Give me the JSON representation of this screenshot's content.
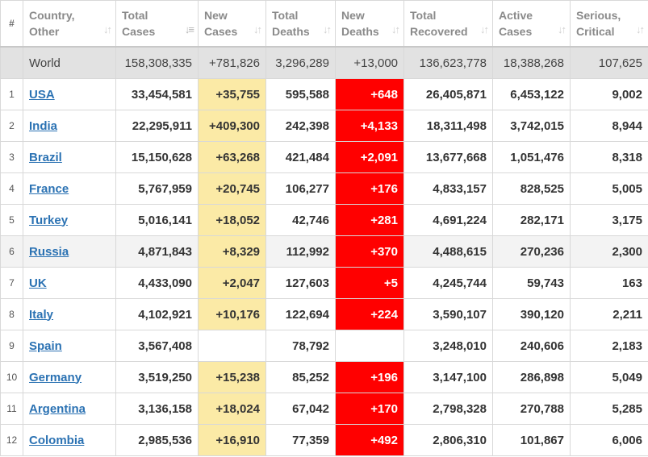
{
  "headers": {
    "rank": "#",
    "country": [
      "Country,",
      "Other"
    ],
    "total_cases": [
      "Total",
      "Cases"
    ],
    "new_cases": [
      "New",
      "Cases"
    ],
    "total_deaths": [
      "Total",
      "Deaths"
    ],
    "new_deaths": [
      "New",
      "Deaths"
    ],
    "total_recovered": [
      "Total",
      "Recovered"
    ],
    "active_cases": [
      "Active",
      "Cases"
    ],
    "serious_critical": [
      "Serious,",
      "Critical"
    ]
  },
  "sort_icon": "sort-arrows-icon",
  "world": {
    "country": "World",
    "total_cases": "158,308,335",
    "new_cases": "+781,826",
    "total_deaths": "3,296,289",
    "new_deaths": "+13,000",
    "total_recovered": "136,623,778",
    "active_cases": "18,388,268",
    "serious_critical": "107,625"
  },
  "rows": [
    {
      "rank": "1",
      "country": "USA",
      "total_cases": "33,454,581",
      "new_cases": "+35,755",
      "total_deaths": "595,588",
      "new_deaths": "+648",
      "total_recovered": "26,405,871",
      "active_cases": "6,453,122",
      "serious_critical": "9,002"
    },
    {
      "rank": "2",
      "country": "India",
      "total_cases": "22,295,911",
      "new_cases": "+409,300",
      "total_deaths": "242,398",
      "new_deaths": "+4,133",
      "total_recovered": "18,311,498",
      "active_cases": "3,742,015",
      "serious_critical": "8,944"
    },
    {
      "rank": "3",
      "country": "Brazil",
      "total_cases": "15,150,628",
      "new_cases": "+63,268",
      "total_deaths": "421,484",
      "new_deaths": "+2,091",
      "total_recovered": "13,677,668",
      "active_cases": "1,051,476",
      "serious_critical": "8,318"
    },
    {
      "rank": "4",
      "country": "France",
      "total_cases": "5,767,959",
      "new_cases": "+20,745",
      "total_deaths": "106,277",
      "new_deaths": "+176",
      "total_recovered": "4,833,157",
      "active_cases": "828,525",
      "serious_critical": "5,005"
    },
    {
      "rank": "5",
      "country": "Turkey",
      "total_cases": "5,016,141",
      "new_cases": "+18,052",
      "total_deaths": "42,746",
      "new_deaths": "+281",
      "total_recovered": "4,691,224",
      "active_cases": "282,171",
      "serious_critical": "3,175"
    },
    {
      "rank": "6",
      "country": "Russia",
      "total_cases": "4,871,843",
      "new_cases": "+8,329",
      "total_deaths": "112,992",
      "new_deaths": "+370",
      "total_recovered": "4,488,615",
      "active_cases": "270,236",
      "serious_critical": "2,300"
    },
    {
      "rank": "7",
      "country": "UK",
      "total_cases": "4,433,090",
      "new_cases": "+2,047",
      "total_deaths": "127,603",
      "new_deaths": "+5",
      "total_recovered": "4,245,744",
      "active_cases": "59,743",
      "serious_critical": "163"
    },
    {
      "rank": "8",
      "country": "Italy",
      "total_cases": "4,102,921",
      "new_cases": "+10,176",
      "total_deaths": "122,694",
      "new_deaths": "+224",
      "total_recovered": "3,590,107",
      "active_cases": "390,120",
      "serious_critical": "2,211"
    },
    {
      "rank": "9",
      "country": "Spain",
      "total_cases": "3,567,408",
      "new_cases": "",
      "total_deaths": "78,792",
      "new_deaths": "",
      "total_recovered": "3,248,010",
      "active_cases": "240,606",
      "serious_critical": "2,183"
    },
    {
      "rank": "10",
      "country": "Germany",
      "total_cases": "3,519,250",
      "new_cases": "+15,238",
      "total_deaths": "85,252",
      "new_deaths": "+196",
      "total_recovered": "3,147,100",
      "active_cases": "286,898",
      "serious_critical": "5,049"
    },
    {
      "rank": "11",
      "country": "Argentina",
      "total_cases": "3,136,158",
      "new_cases": "+18,024",
      "total_deaths": "67,042",
      "new_deaths": "+170",
      "total_recovered": "2,798,328",
      "active_cases": "270,788",
      "serious_critical": "5,285"
    },
    {
      "rank": "12",
      "country": "Colombia",
      "total_cases": "2,985,536",
      "new_cases": "+16,910",
      "total_deaths": "77,359",
      "new_deaths": "+492",
      "total_recovered": "2,806,310",
      "active_cases": "101,867",
      "serious_critical": "6,006"
    }
  ],
  "colors": {
    "new_cases_highlight": "#fbeaa6",
    "new_deaths_highlight": "#ff0000",
    "link": "#2b72b3",
    "world_row": "#e2e2e2"
  }
}
